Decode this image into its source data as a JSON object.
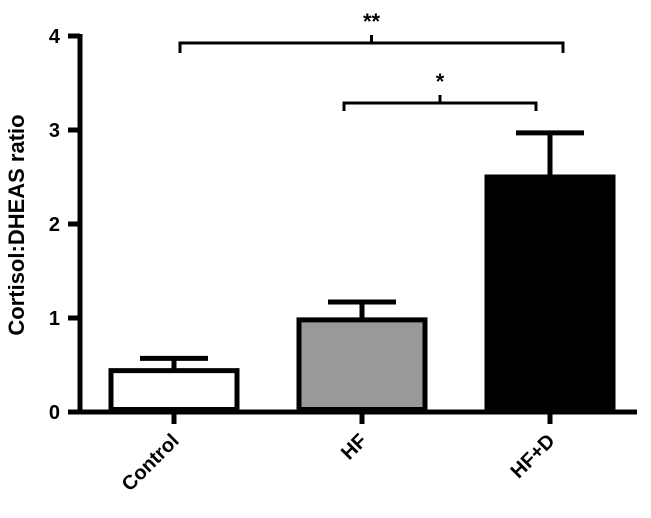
{
  "chart_data": {
    "type": "bar",
    "categories": [
      "Control",
      "HF",
      "HF+D"
    ],
    "values": [
      0.44,
      0.98,
      2.5
    ],
    "errors": [
      0.13,
      0.19,
      0.47
    ],
    "bar_colors": [
      "#ffffff",
      "#999999",
      "#000000"
    ],
    "ylabel": "Cortisol:DHEAS ratio",
    "xlabel": "",
    "ylim": [
      0,
      4
    ],
    "yticks": [
      0,
      1,
      2,
      3,
      4
    ],
    "grid": false,
    "significance": [
      {
        "from": "Control",
        "to": "HF+D",
        "label": "**"
      },
      {
        "from": "HF",
        "to": "HF+D",
        "label": "*"
      }
    ]
  }
}
